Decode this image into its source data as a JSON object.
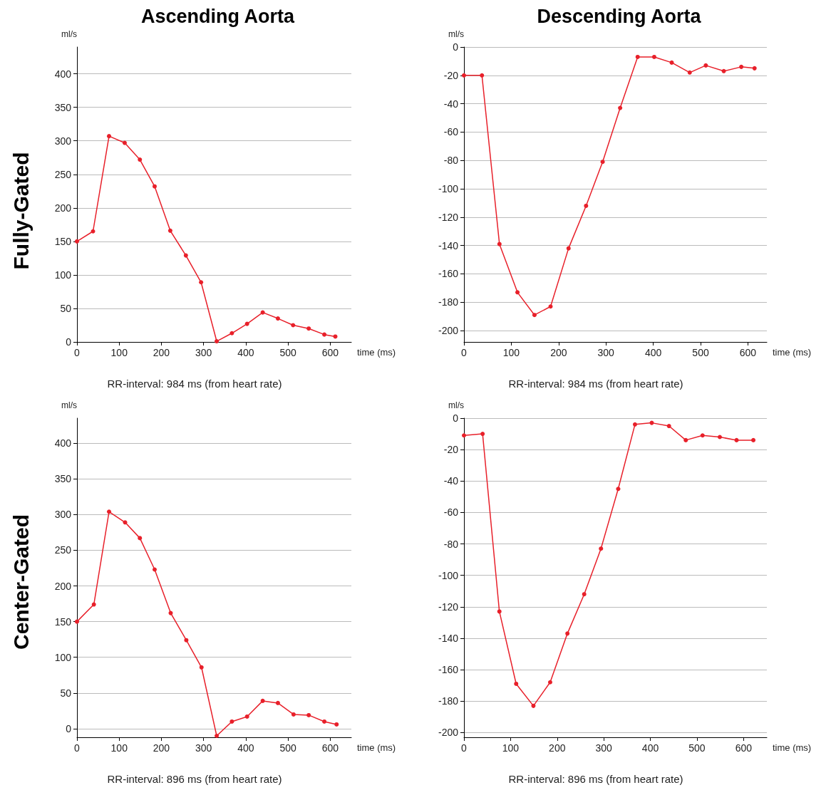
{
  "chart_data": [
    {
      "type": "line",
      "title": "Ascending Aorta",
      "xlabel": "time (ms)",
      "ylabel": "ml/s",
      "annotations": [
        "RR-interval: 984 ms (from heart rate)",
        "Fully-Gated"
      ],
      "xlim": [
        0,
        650
      ],
      "xticks": [
        0,
        100,
        200,
        300,
        400,
        500,
        600
      ],
      "ylim": [
        0,
        440
      ],
      "yticks": [
        0,
        50,
        100,
        150,
        200,
        250,
        300,
        350,
        400
      ],
      "grid": "y",
      "marker": "circle",
      "line_style": "solid",
      "series": [
        {
          "color": "#e8202a",
          "x": [
            0,
            38,
            76,
            113,
            149,
            184,
            221,
            258,
            294,
            331,
            367,
            403,
            440,
            476,
            512,
            549,
            586,
            612
          ],
          "values": [
            150,
            165,
            307,
            297,
            272,
            232,
            166,
            129,
            89,
            1,
            13,
            27,
            44,
            35,
            25,
            20,
            11,
            8
          ]
        }
      ]
    },
    {
      "type": "line",
      "title": "Descending Aorta",
      "xlabel": "time (ms)",
      "ylabel": "ml/s",
      "annotations": [
        "RR-interval: 984 ms (from heart rate)"
      ],
      "xlim": [
        0,
        640
      ],
      "xticks": [
        0,
        100,
        200,
        300,
        400,
        500,
        600
      ],
      "ylim": [
        -208,
        0
      ],
      "yticks": [
        -200,
        -180,
        -160,
        -140,
        -120,
        -100,
        -80,
        -60,
        -40,
        -20,
        0
      ],
      "grid": "y",
      "marker": "circle",
      "line_style": "solid",
      "series": [
        {
          "color": "#e8202a",
          "x": [
            0,
            38,
            75,
            113,
            149,
            183,
            221,
            258,
            293,
            330,
            367,
            402,
            439,
            477,
            511,
            549,
            586,
            614
          ],
          "values": [
            -20,
            -20,
            -139,
            -173,
            -189,
            -183,
            -142,
            -112,
            -81,
            -43,
            -7,
            -7,
            -11,
            -18,
            -13,
            -17,
            -14,
            -15
          ]
        }
      ]
    },
    {
      "type": "line",
      "xlabel": "time (ms)",
      "ylabel": "ml/s",
      "annotations": [
        "RR-interval: 896 ms (from heart rate)",
        "Center-Gated"
      ],
      "xlim": [
        0,
        650
      ],
      "xticks": [
        0,
        100,
        200,
        300,
        400,
        500,
        600
      ],
      "ylim": [
        -12,
        435
      ],
      "yticks": [
        0,
        50,
        100,
        150,
        200,
        250,
        300,
        350,
        400
      ],
      "grid": "y",
      "marker": "circle",
      "line_style": "solid",
      "series": [
        {
          "color": "#e8202a",
          "x": [
            0,
            40,
            76,
            114,
            149,
            184,
            222,
            259,
            295,
            331,
            367,
            403,
            440,
            476,
            513,
            549,
            586,
            615
          ],
          "values": [
            150,
            174,
            304,
            289,
            267,
            223,
            162,
            124,
            86,
            -10,
            10,
            17,
            39,
            36,
            20,
            19,
            10,
            6
          ]
        }
      ]
    },
    {
      "type": "line",
      "xlabel": "time (ms)",
      "ylabel": "ml/s",
      "annotations": [
        "RR-interval: 896 ms (from heart rate)"
      ],
      "xlim": [
        0,
        650
      ],
      "xticks": [
        0,
        100,
        200,
        300,
        400,
        500,
        600
      ],
      "ylim": [
        -203,
        0
      ],
      "yticks": [
        -200,
        -180,
        -160,
        -140,
        -120,
        -100,
        -80,
        -60,
        -40,
        -20,
        0
      ],
      "grid": "y",
      "marker": "circle",
      "line_style": "solid",
      "series": [
        {
          "color": "#e8202a",
          "x": [
            0,
            40,
            76,
            112,
            149,
            185,
            222,
            258,
            294,
            331,
            367,
            403,
            440,
            476,
            512,
            549,
            585,
            621
          ],
          "values": [
            -11,
            -10,
            -123,
            -169,
            -183,
            -168,
            -137,
            -112,
            -83,
            -45,
            -4,
            -3,
            -5,
            -14,
            -11,
            -12,
            -14,
            -14
          ]
        }
      ]
    }
  ]
}
